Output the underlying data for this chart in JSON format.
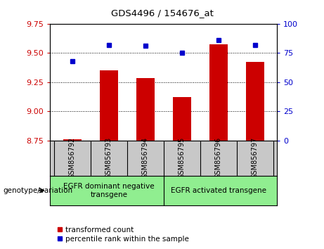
{
  "title": "GDS4496 / 154676_at",
  "samples": [
    "GSM856792",
    "GSM856793",
    "GSM856794",
    "GSM856795",
    "GSM856796",
    "GSM856797"
  ],
  "transformed_count": [
    8.762,
    9.352,
    9.282,
    9.122,
    9.572,
    9.422
  ],
  "percentile_rank": [
    68,
    82,
    81,
    75,
    86,
    82
  ],
  "left_ylim": [
    8.75,
    9.75
  ],
  "left_yticks": [
    8.75,
    9.0,
    9.25,
    9.5,
    9.75
  ],
  "right_ylim": [
    0,
    100
  ],
  "right_yticks": [
    0,
    25,
    50,
    75,
    100
  ],
  "bar_color": "#cc0000",
  "dot_color": "#0000cc",
  "bar_width": 0.5,
  "groups": [
    {
      "label": "EGFR dominant negative\ntransgene",
      "color": "#90ee90"
    },
    {
      "label": "EGFR activated transgene",
      "color": "#90ee90"
    }
  ],
  "genotype_label": "genotype/variation",
  "legend_bar_label": "transformed count",
  "legend_dot_label": "percentile rank within the sample",
  "left_axis_color": "#cc0000",
  "right_axis_color": "#0000cc",
  "tick_label_area_color": "#c8c8c8"
}
